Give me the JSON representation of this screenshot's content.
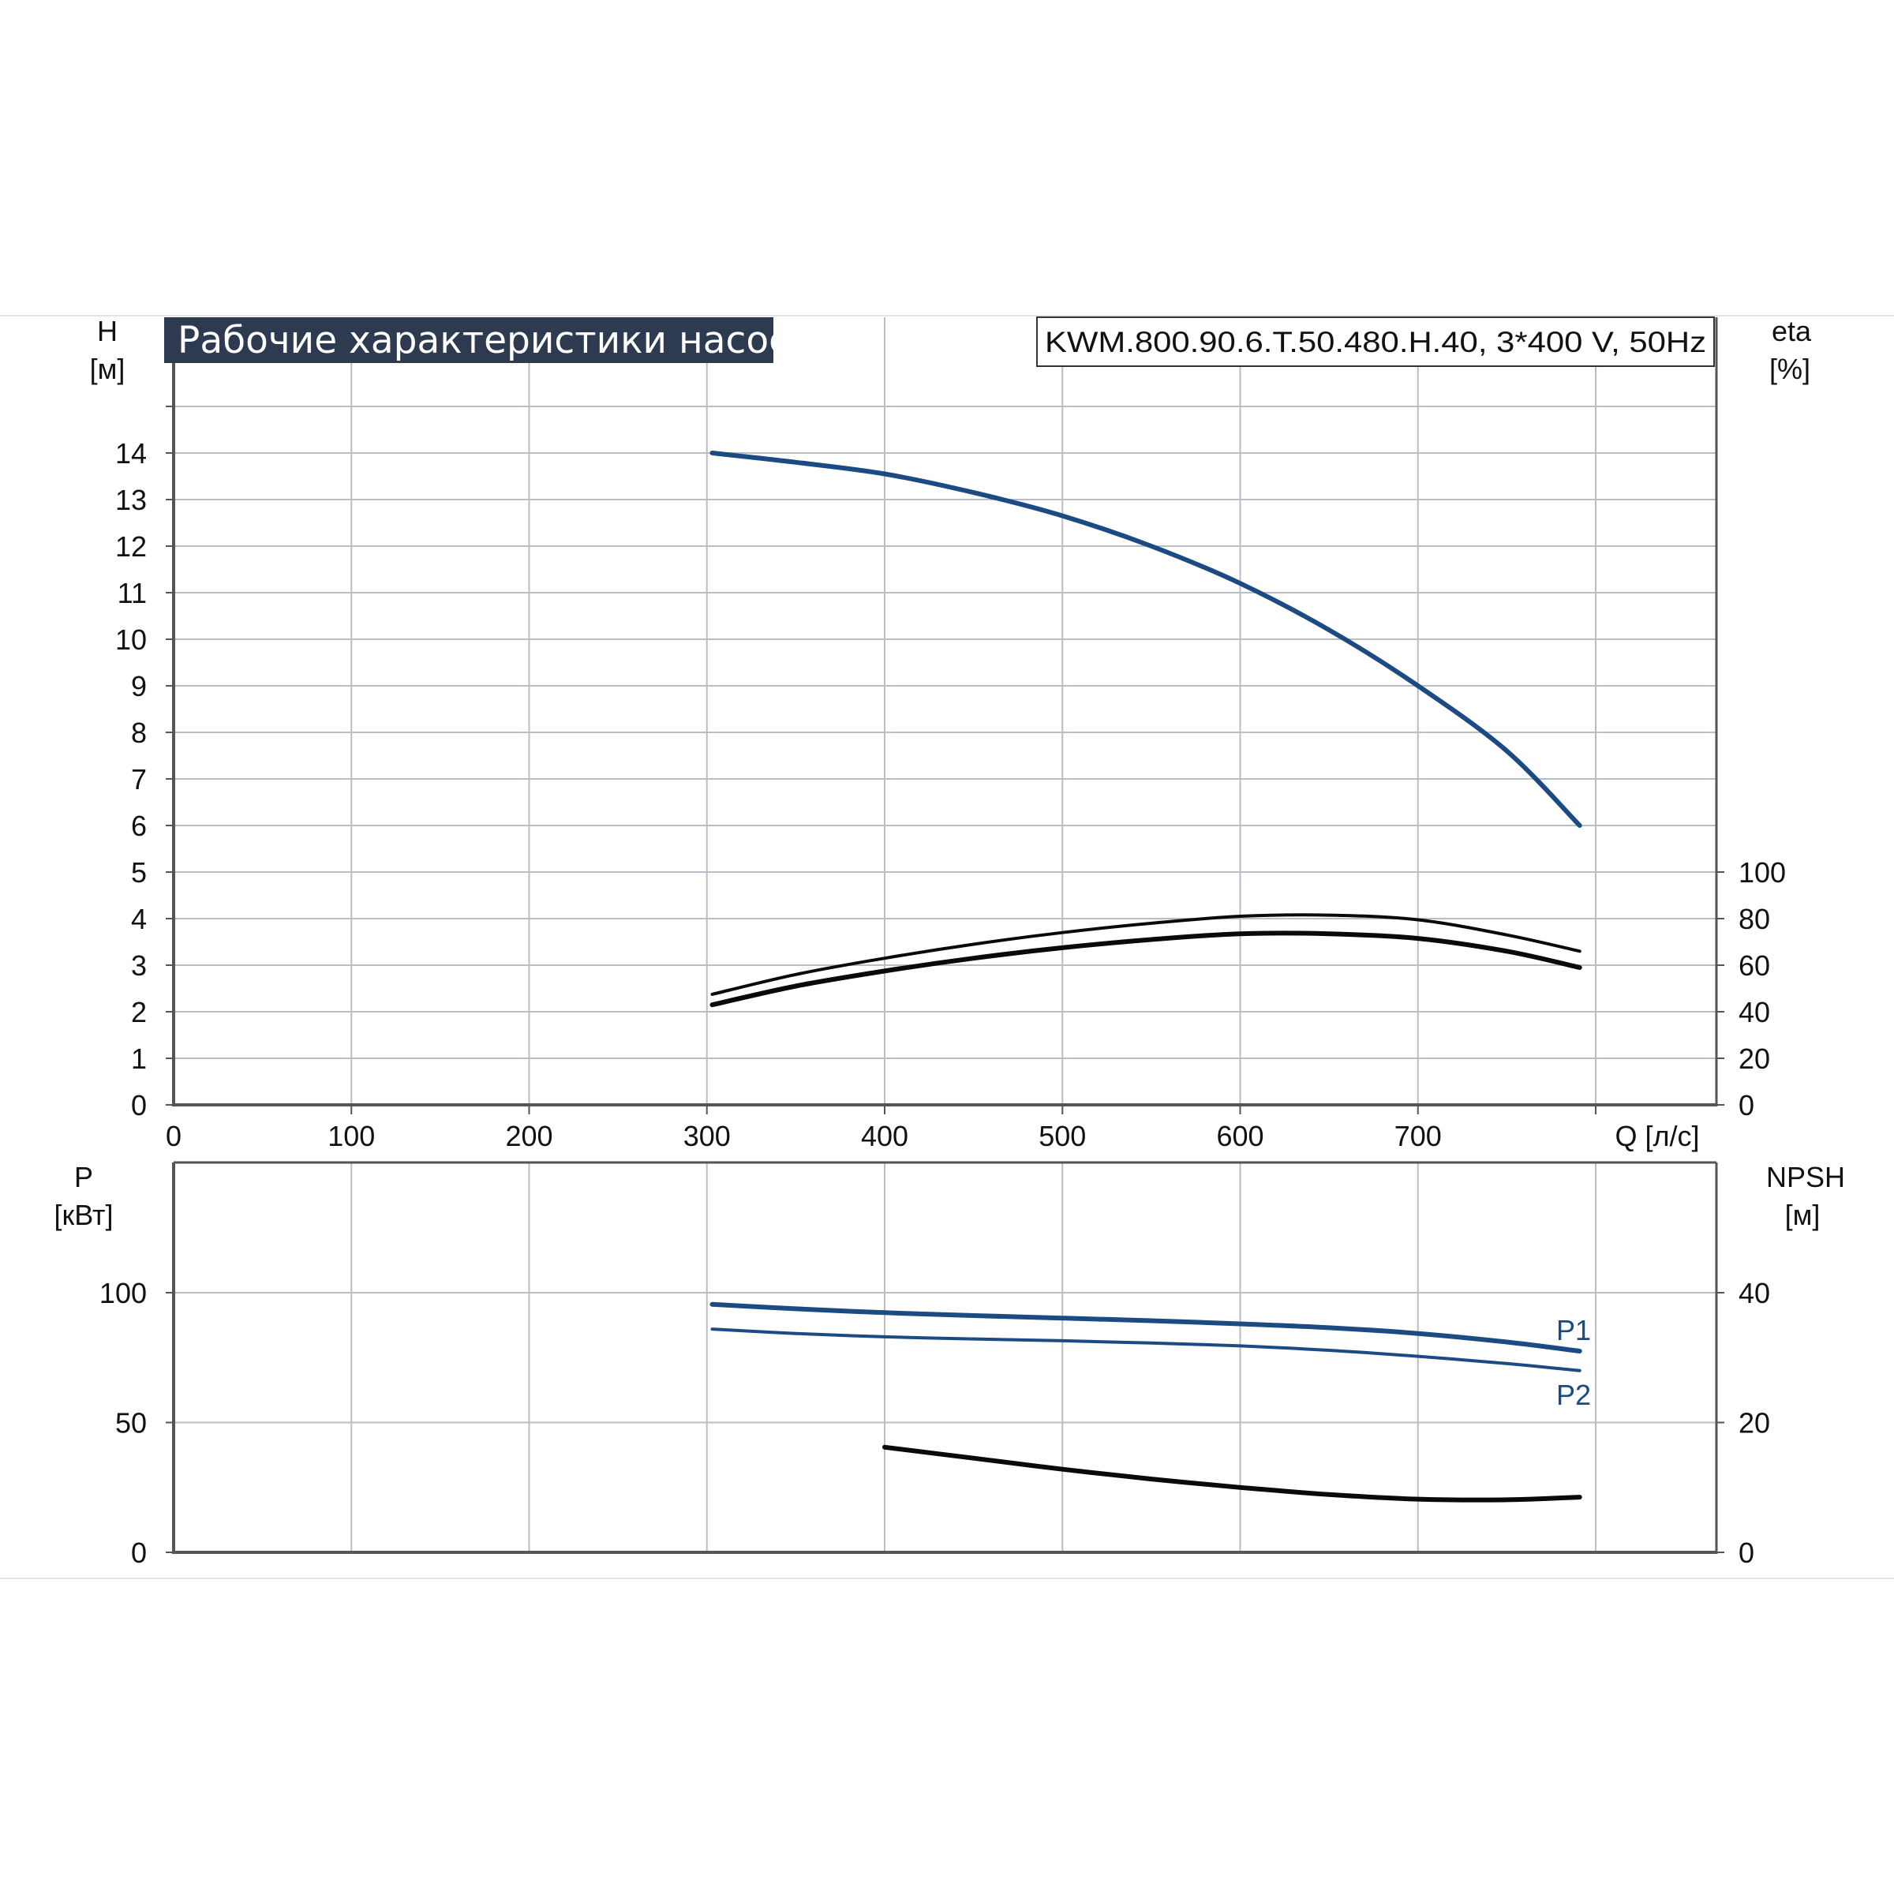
{
  "colors": {
    "grid": "#b9bec6",
    "axis": "#555555",
    "curve_blue": "#1c4a82",
    "curve_black": "#0a0a0a",
    "title_bg": "#2d3a4f"
  },
  "chart_data": [
    {
      "type": "line",
      "title": "Рабочие характеристики насоса",
      "model": "KWM.800.90.6.T.50.480.H.40, 3*400 V, 50Hz",
      "xlabel": "Q [л/с]",
      "ylabel": "H",
      "ylabel_unit": "[м]",
      "y2label": "eta",
      "y2label_unit": "[%]",
      "xlim": [
        0,
        800
      ],
      "ylim": [
        0,
        15
      ],
      "y2lim": [
        0,
        100
      ],
      "x_ticks": [
        "0",
        "100",
        "200",
        "300",
        "400",
        "500",
        "600",
        "700"
      ],
      "y_ticks": [
        "0",
        "1",
        "2",
        "3",
        "4",
        "5",
        "6",
        "7",
        "8",
        "9",
        "10",
        "11",
        "12",
        "13",
        "14"
      ],
      "y2_ticks": [
        "0",
        "20",
        "40",
        "60",
        "80",
        "100"
      ],
      "grid": true,
      "series": [
        {
          "axis": "left",
          "color": "#1c4a82",
          "x": [
            303,
            350,
            400,
            450,
            500,
            550,
            600,
            650,
            700,
            750,
            791
          ],
          "y": [
            14.0,
            13.8,
            13.55,
            13.15,
            12.65,
            12.0,
            11.2,
            10.2,
            9.0,
            7.6,
            6.0
          ]
        },
        {
          "axis": "right",
          "color": "#0a0a0a",
          "x": [
            303,
            350,
            400,
            450,
            500,
            550,
            600,
            650,
            700,
            750,
            791
          ],
          "y": [
            47.5,
            56,
            63,
            69,
            74,
            78,
            81,
            81.5,
            79.5,
            73,
            66
          ]
        },
        {
          "axis": "right",
          "color": "#0a0a0a",
          "x": [
            303,
            350,
            400,
            450,
            500,
            550,
            600,
            650,
            700,
            750,
            791
          ],
          "y": [
            43,
            51,
            57.5,
            63,
            67.5,
            71,
            73.5,
            73.5,
            71.5,
            66,
            59
          ]
        }
      ]
    },
    {
      "type": "line",
      "xlabel": "",
      "ylabel": "P",
      "ylabel_unit": "[кВт]",
      "y2label": "NPSH",
      "y2label_unit": "[м]",
      "xlim": [
        0,
        800
      ],
      "ylim": [
        0,
        150
      ],
      "y2lim": [
        0,
        60
      ],
      "y_ticks": [
        "0",
        "50",
        "100"
      ],
      "y2_ticks": [
        "0",
        "20",
        "40"
      ],
      "grid": true,
      "series": [
        {
          "name": "P1",
          "axis": "left",
          "color": "#1c4a82",
          "x": [
            303,
            350,
            400,
            450,
            500,
            550,
            600,
            650,
            700,
            750,
            791
          ],
          "y": [
            95.5,
            93.8,
            92.3,
            91.2,
            90.2,
            89.2,
            88.0,
            86.5,
            84.3,
            81.0,
            77.5
          ]
        },
        {
          "name": "P2",
          "axis": "left",
          "color": "#1c4a82",
          "x": [
            303,
            350,
            400,
            450,
            500,
            550,
            600,
            650,
            700,
            750,
            791
          ],
          "y": [
            86.0,
            84.3,
            83.0,
            82.2,
            81.5,
            80.6,
            79.5,
            77.8,
            75.5,
            72.7,
            70.0
          ]
        },
        {
          "axis": "right",
          "color": "#0a0a0a",
          "x": [
            400,
            450,
            500,
            550,
            600,
            650,
            700,
            750,
            791
          ],
          "y": [
            16.2,
            14.5,
            12.8,
            11.3,
            10.0,
            8.9,
            8.2,
            8.1,
            8.5
          ]
        }
      ]
    }
  ]
}
